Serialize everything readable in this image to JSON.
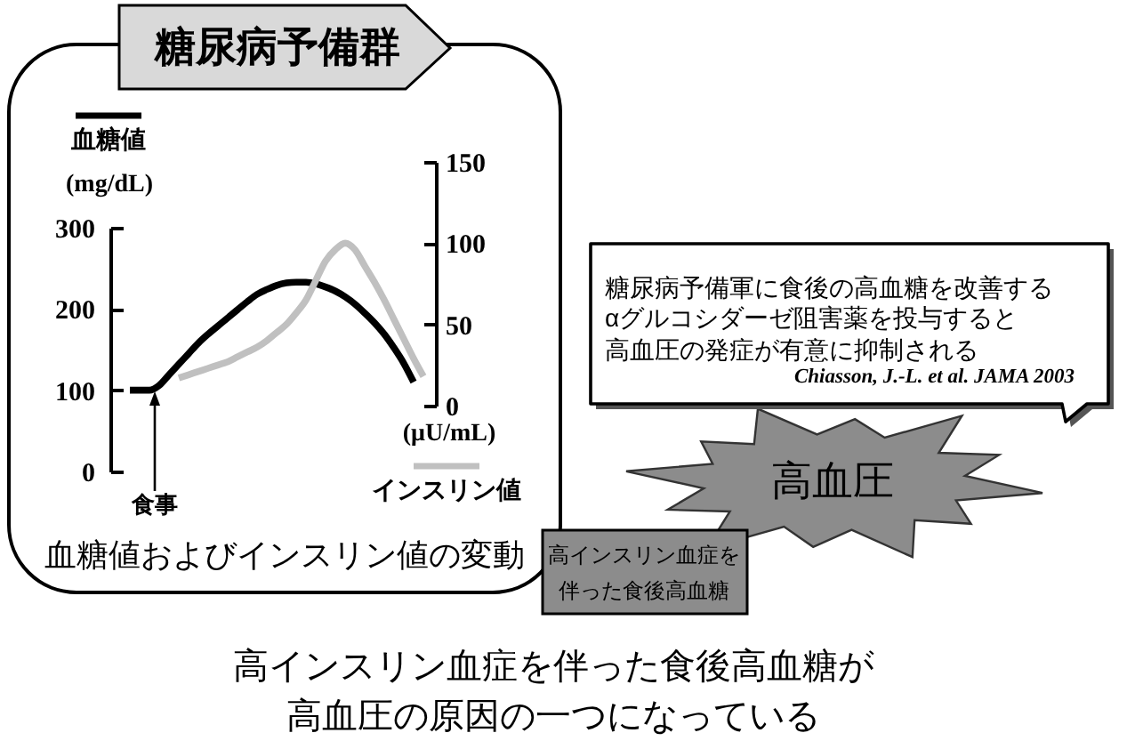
{
  "chart_data": {
    "type": "line",
    "title": "糖尿病予備群",
    "ylabel": "(mg/dL)",
    "y2label": "(μU/mL)",
    "categories": [
      null,
      null,
      null,
      null,
      null,
      null,
      null,
      null,
      null,
      null,
      null,
      null,
      null,
      null,
      null,
      null,
      null,
      null,
      null,
      null,
      null,
      null,
      null,
      null,
      null,
      null,
      null,
      null,
      null,
      null,
      null
    ],
    "series": [
      {
        "name": "血糖値",
        "color": "#000000",
        "values": [
          100,
          100,
          100,
          106,
          119,
          132,
          145,
          158,
          169,
          179,
          189,
          199,
          209,
          218,
          224,
          229,
          232,
          233,
          233,
          231,
          227,
          222,
          215,
          206,
          195,
          183,
          169,
          152,
          133,
          110,
          null
        ]
      },
      {
        "name": "インスリン値",
        "color": "#c0c0c0",
        "axis": "y2",
        "values": [
          null,
          null,
          null,
          null,
          null,
          17,
          19,
          21,
          23,
          25,
          27,
          30,
          33,
          36,
          40,
          45,
          50,
          57,
          65,
          77,
          89,
          96,
          100,
          96,
          86,
          76,
          65,
          53,
          41,
          29,
          18
        ]
      }
    ],
    "ylim": [
      0,
      300
    ],
    "yticks": [
      0,
      100,
      200,
      300
    ],
    "y2lim": [
      0,
      150
    ],
    "y2ticks": [
      0,
      50,
      100,
      150
    ],
    "legend": "top right",
    "annotations": [
      "食事",
      "血糖値およびインスリン値の変動",
      "高インスリン血症を伴った食後高血糖",
      "糖尿病予備軍に食後の高血糖を改善する",
      "αグルコシダーゼ阻害薬を投与すると",
      "高血圧の発症が有意に抑制される",
      "Chiasson, J.-L. et al. JAMA 2003",
      "高血圧",
      "高インスリン血症を伴った食後高血糖が高血圧の原因の一つになっている"
    ]
  }
}
